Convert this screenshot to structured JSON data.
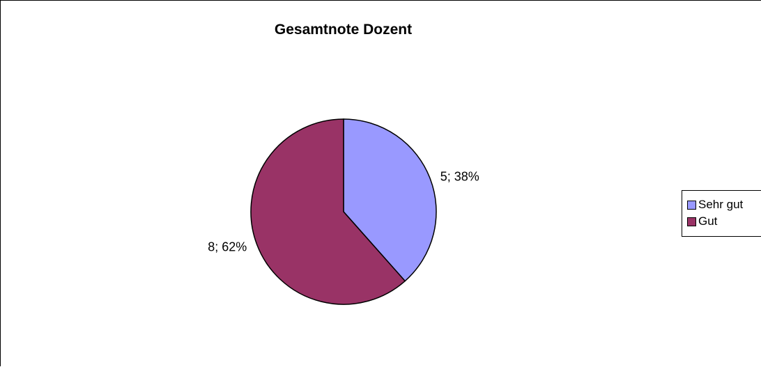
{
  "chart_data": {
    "type": "pie",
    "title": "Gesamtnote Dozent",
    "categories": [
      "Sehr gut",
      "Gut"
    ],
    "values": [
      5,
      8
    ],
    "percentages": [
      38,
      62
    ],
    "data_labels": [
      "5; 38%",
      "8; 62%"
    ],
    "colors": [
      "#9999ff",
      "#993366"
    ],
    "legend_position": "right",
    "start_angle": "12 o'clock, clockwise"
  }
}
